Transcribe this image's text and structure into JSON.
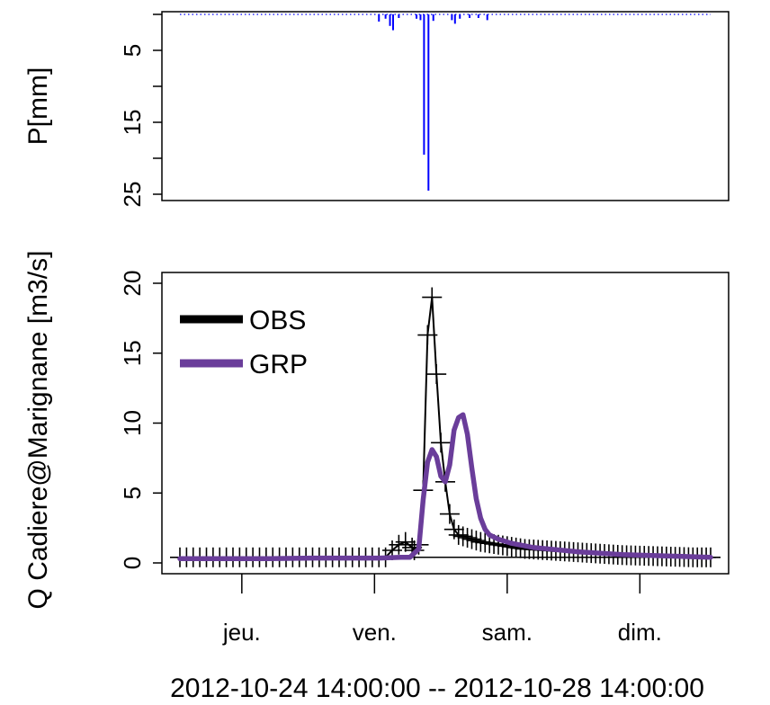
{
  "chart_data": [
    {
      "type": "bar",
      "name": "precipitation",
      "ylabel": "P[mm]",
      "ylim": [
        25,
        0
      ],
      "yticks": [
        5,
        15,
        25
      ],
      "xlim": [
        0,
        120
      ],
      "color": "#0000ff",
      "dotted_baseline": true,
      "bars": [
        {
          "x": 45.0,
          "value": 1.0
        },
        {
          "x": 46.5,
          "value": 0.6
        },
        {
          "x": 47.5,
          "value": 1.6
        },
        {
          "x": 48.2,
          "value": 2.2
        },
        {
          "x": 49.5,
          "value": 0.5
        },
        {
          "x": 53.5,
          "value": 0.6
        },
        {
          "x": 54.4,
          "value": 0.8
        },
        {
          "x": 55.2,
          "value": 19.5
        },
        {
          "x": 56.2,
          "value": 24.5
        },
        {
          "x": 57.3,
          "value": 0.9
        },
        {
          "x": 61.5,
          "value": 0.8
        },
        {
          "x": 62.2,
          "value": 1.3
        },
        {
          "x": 63.3,
          "value": 0.6
        },
        {
          "x": 65.5,
          "value": 0.5
        },
        {
          "x": 67.5,
          "value": 0.5
        },
        {
          "x": 69.5,
          "value": 0.8
        }
      ]
    },
    {
      "type": "line",
      "name": "discharge",
      "ylabel": "Q Cadiere@Marignane [m3/s]",
      "ylim": [
        0,
        20
      ],
      "yticks": [
        0,
        5,
        10,
        15,
        20
      ],
      "xlim": [
        0,
        120
      ],
      "xticks": [
        {
          "x": 14,
          "label": "jeu."
        },
        {
          "x": 44,
          "label": "ven."
        },
        {
          "x": 74,
          "label": "sam."
        },
        {
          "x": 104,
          "label": "dim."
        }
      ],
      "legend": {
        "position": "top-left",
        "entries": [
          {
            "label": "OBS",
            "color": "#000000"
          },
          {
            "label": "GRP",
            "color": "#6a3d9a"
          }
        ]
      },
      "series": [
        {
          "name": "OBS",
          "color": "#000000",
          "marker": "plus",
          "x": [
            0,
            1.5,
            3,
            4.5,
            6,
            7.5,
            9,
            10.5,
            12,
            13.5,
            15,
            16.5,
            18,
            19.5,
            21,
            22.5,
            24,
            25.5,
            27,
            28.5,
            30,
            31.5,
            33,
            34.5,
            36,
            37.5,
            39,
            40.5,
            42,
            43.5,
            45,
            46.5,
            48,
            49.5,
            51,
            52.5,
            53,
            54,
            55,
            56,
            57,
            58,
            59,
            60,
            61,
            62,
            63,
            64,
            65,
            66,
            67,
            68,
            69,
            70,
            71,
            72,
            73,
            74,
            75,
            76,
            77,
            78,
            79,
            80,
            81,
            82,
            83,
            84,
            85,
            86,
            87,
            88,
            89,
            90,
            91,
            92,
            93,
            94,
            95,
            96,
            97,
            98,
            99,
            100,
            101,
            102,
            103,
            104,
            105,
            106,
            107,
            108,
            109,
            110,
            111,
            112,
            113,
            114,
            115,
            116,
            117,
            118,
            119,
            120
          ],
          "y": [
            0.4,
            0.4,
            0.4,
            0.4,
            0.4,
            0.4,
            0.4,
            0.4,
            0.4,
            0.4,
            0.4,
            0.4,
            0.4,
            0.4,
            0.4,
            0.4,
            0.4,
            0.4,
            0.4,
            0.4,
            0.4,
            0.4,
            0.4,
            0.4,
            0.4,
            0.4,
            0.4,
            0.4,
            0.4,
            0.4,
            0.4,
            0.4,
            0.9,
            1.3,
            1.5,
            1.1,
            0.9,
            1.3,
            5.2,
            16.3,
            19.0,
            13.5,
            8.6,
            5.8,
            3.5,
            2.4,
            2.0,
            1.9,
            1.8,
            1.7,
            1.6,
            1.5,
            1.45,
            1.4,
            1.35,
            1.3,
            1.25,
            1.2,
            1.15,
            1.1,
            1.05,
            1.0,
            0.98,
            0.96,
            0.94,
            0.92,
            0.9,
            0.88,
            0.86,
            0.84,
            0.82,
            0.8,
            0.78,
            0.76,
            0.74,
            0.72,
            0.7,
            0.68,
            0.66,
            0.64,
            0.62,
            0.6,
            0.58,
            0.56,
            0.55,
            0.54,
            0.53,
            0.52,
            0.51,
            0.5,
            0.49,
            0.48,
            0.47,
            0.46,
            0.45,
            0.44,
            0.43,
            0.42,
            0.41,
            0.4,
            0.4,
            0.4,
            0.4,
            0.4
          ]
        },
        {
          "name": "GRP",
          "color": "#6a3d9a",
          "x": [
            0,
            10,
            20,
            30,
            40,
            45,
            50,
            52,
            54,
            55,
            56,
            57,
            58,
            59,
            60,
            61,
            62,
            63,
            64,
            65,
            66,
            67,
            68,
            69,
            70,
            72,
            75,
            80,
            90,
            100,
            110,
            120
          ],
          "y": [
            0.3,
            0.3,
            0.3,
            0.35,
            0.35,
            0.35,
            0.4,
            0.4,
            1.0,
            4.5,
            7.2,
            8.1,
            7.6,
            6.2,
            5.8,
            7.0,
            9.5,
            10.4,
            10.6,
            9.2,
            6.8,
            4.6,
            3.2,
            2.4,
            2.0,
            1.7,
            1.4,
            1.1,
            0.8,
            0.6,
            0.5,
            0.4
          ]
        }
      ]
    }
  ],
  "footer": {
    "period": "2012-10-24 14:00:00 -- 2012-10-28 14:00:00"
  }
}
